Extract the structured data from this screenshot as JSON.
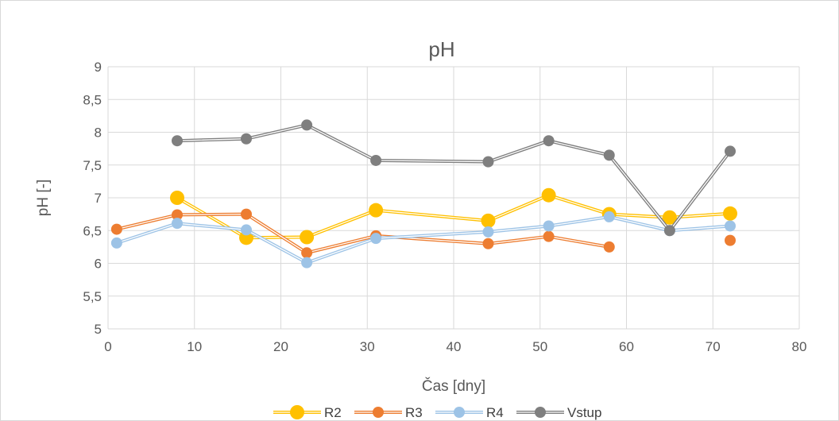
{
  "chart_data": {
    "type": "line",
    "title": "pH",
    "xlabel": "Čas [dny]",
    "ylabel": "pH [-]",
    "xlim": [
      0,
      80
    ],
    "ylim": [
      5,
      9
    ],
    "x_ticks": [
      0,
      10,
      20,
      30,
      40,
      50,
      60,
      70,
      80
    ],
    "x_tick_labels": [
      "0",
      "10",
      "20",
      "30",
      "40",
      "50",
      "60",
      "70",
      "80"
    ],
    "y_ticks": [
      5,
      5.5,
      6,
      6.5,
      7,
      7.5,
      8,
      8.5,
      9
    ],
    "y_tick_labels": [
      "5",
      "5,5",
      "6",
      "6,5",
      "7",
      "7,5",
      "8",
      "8,5",
      "9"
    ],
    "grid": true,
    "legend_position": "bottom",
    "series": [
      {
        "name": "R2",
        "color": "#ffc000",
        "marker_size": 9,
        "points": [
          [
            8,
            7.0
          ],
          [
            16,
            6.39
          ],
          [
            23,
            6.4
          ],
          [
            31,
            6.81
          ],
          [
            44,
            6.65
          ],
          [
            51,
            7.04
          ],
          [
            58,
            6.75
          ],
          [
            65,
            6.7
          ],
          [
            72,
            6.76
          ]
        ]
      },
      {
        "name": "R3",
        "color": "#ed7d31",
        "marker_size": 7,
        "points": [
          [
            1,
            6.52
          ],
          [
            8,
            6.74
          ],
          [
            16,
            6.75
          ],
          [
            23,
            6.16
          ],
          [
            31,
            6.42
          ],
          [
            44,
            6.3
          ],
          [
            51,
            6.41
          ],
          [
            58,
            6.25
          ],
          [
            65,
            null
          ],
          [
            72,
            6.35
          ]
        ]
      },
      {
        "name": "R4",
        "color": "#9dc3e6",
        "marker_size": 7,
        "points": [
          [
            1,
            6.31
          ],
          [
            8,
            6.61
          ],
          [
            16,
            6.51
          ],
          [
            23,
            6.01
          ],
          [
            31,
            6.38
          ],
          [
            44,
            6.48
          ],
          [
            51,
            6.57
          ],
          [
            58,
            6.71
          ],
          [
            65,
            6.5
          ],
          [
            72,
            6.57
          ]
        ]
      },
      {
        "name": "Vstup",
        "color": "#7f7f7f",
        "marker_size": 7,
        "points": [
          [
            8,
            7.87
          ],
          [
            16,
            7.9
          ],
          [
            23,
            8.11
          ],
          [
            31,
            7.57
          ],
          [
            44,
            7.55
          ],
          [
            51,
            7.87
          ],
          [
            58,
            7.65
          ],
          [
            65,
            6.5
          ],
          [
            72,
            7.71
          ]
        ]
      }
    ]
  }
}
